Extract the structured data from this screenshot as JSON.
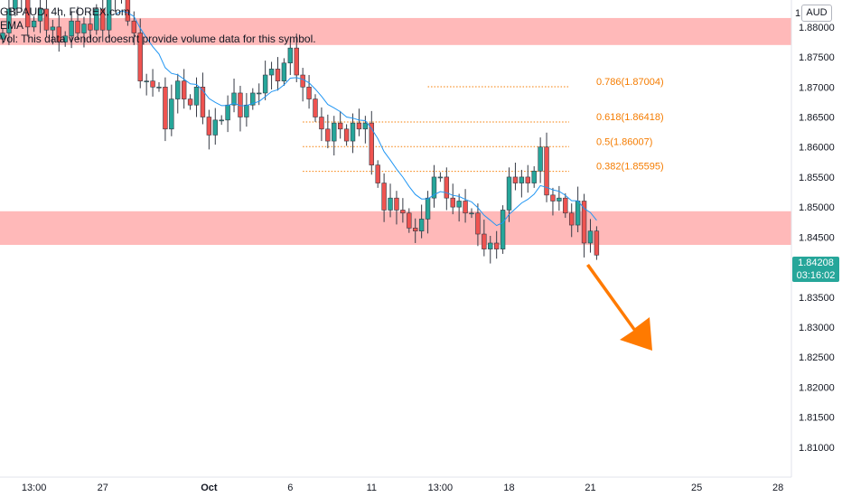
{
  "legend": {
    "symbol": "GBPAUD, 4h, FOREX.com",
    "indicator": "EMA",
    "volume_note": "Vol: This data vendor doesn't provide volume data for this symbol."
  },
  "currency_badge": "AUD",
  "last_price": {
    "value": "1.84208",
    "countdown": "03:16:02"
  },
  "colors": {
    "up": "#26a69a",
    "down": "#ef5350",
    "ema": "#2196f3",
    "zone": "#ff8a8a",
    "fib": "#f57c00",
    "arrow": "#ff7a00",
    "axis_text": "#131722"
  },
  "chart_data": {
    "type": "candlestick",
    "symbol": "GBPAUD",
    "timeframe": "4h",
    "ylim": [
      1.805,
      1.8845
    ],
    "y_ticks": [
      "1.81000",
      "1.81500",
      "1.82000",
      "1.82500",
      "1.83000",
      "1.83500",
      "1.84000",
      "1.84500",
      "1.85000",
      "1.85500",
      "1.86000",
      "1.86500",
      "1.87000",
      "1.87500",
      "1.88000"
    ],
    "y_top_label": "1.",
    "x_ticks": [
      {
        "label": "13:00",
        "bar": 5
      },
      {
        "label": "27",
        "bar": 16
      },
      {
        "label": "Oct",
        "bar": 33
      },
      {
        "label": "6",
        "bar": 46
      },
      {
        "label": "11",
        "bar": 59
      },
      {
        "label": "13:00",
        "bar": 70
      },
      {
        "label": "18",
        "bar": 81
      },
      {
        "label": "21",
        "bar": 94
      },
      {
        "label": "25",
        "bar": 111
      },
      {
        "label": "28",
        "bar": 124
      }
    ],
    "closes": [
      1.879,
      1.883,
      1.8855,
      1.885,
      1.88,
      1.881,
      1.883,
      1.8795,
      1.88,
      1.8775,
      1.8785,
      1.881,
      1.879,
      1.8805,
      1.8795,
      1.883,
      1.8795,
      1.885,
      1.886,
      1.8855,
      1.881,
      1.879,
      1.871,
      1.871,
      1.87,
      1.87,
      1.863,
      1.868,
      1.871,
      1.868,
      1.867,
      1.87,
      1.865,
      1.862,
      1.8645,
      1.8645,
      1.867,
      1.869,
      1.865,
      1.867,
      1.869,
      1.869,
      1.872,
      1.873,
      1.871,
      1.874,
      1.8765,
      1.872,
      1.87,
      1.868,
      1.865,
      1.863,
      1.861,
      1.864,
      1.863,
      1.861,
      1.864,
      1.863,
      1.864,
      1.857,
      1.854,
      1.8495,
      1.8515,
      1.8495,
      1.849,
      1.8465,
      1.846,
      1.848,
      1.8515,
      1.855,
      1.855,
      1.8515,
      1.85,
      1.851,
      1.849,
      1.849,
      1.8455,
      1.843,
      1.844,
      1.843,
      1.8495,
      1.855,
      1.854,
      1.855,
      1.854,
      1.856,
      1.86,
      1.852,
      1.851,
      1.8515,
      1.849,
      1.847,
      1.851,
      1.844,
      1.846,
      1.842
    ],
    "ema_label": "EMA",
    "zones": [
      {
        "from": 1.877,
        "to": 1.8815
      },
      {
        "from": 1.8437,
        "to": 1.8493
      }
    ],
    "fib_levels": [
      {
        "label": "0.786(1.87004)",
        "price": 1.87004
      },
      {
        "label": "0.618(1.86418)",
        "price": 1.86418
      },
      {
        "label": "0.5(1.86007)",
        "price": 1.86007
      },
      {
        "label": "0.382(1.85595)",
        "price": 1.85595
      }
    ],
    "annotation": "downward-arrow"
  }
}
